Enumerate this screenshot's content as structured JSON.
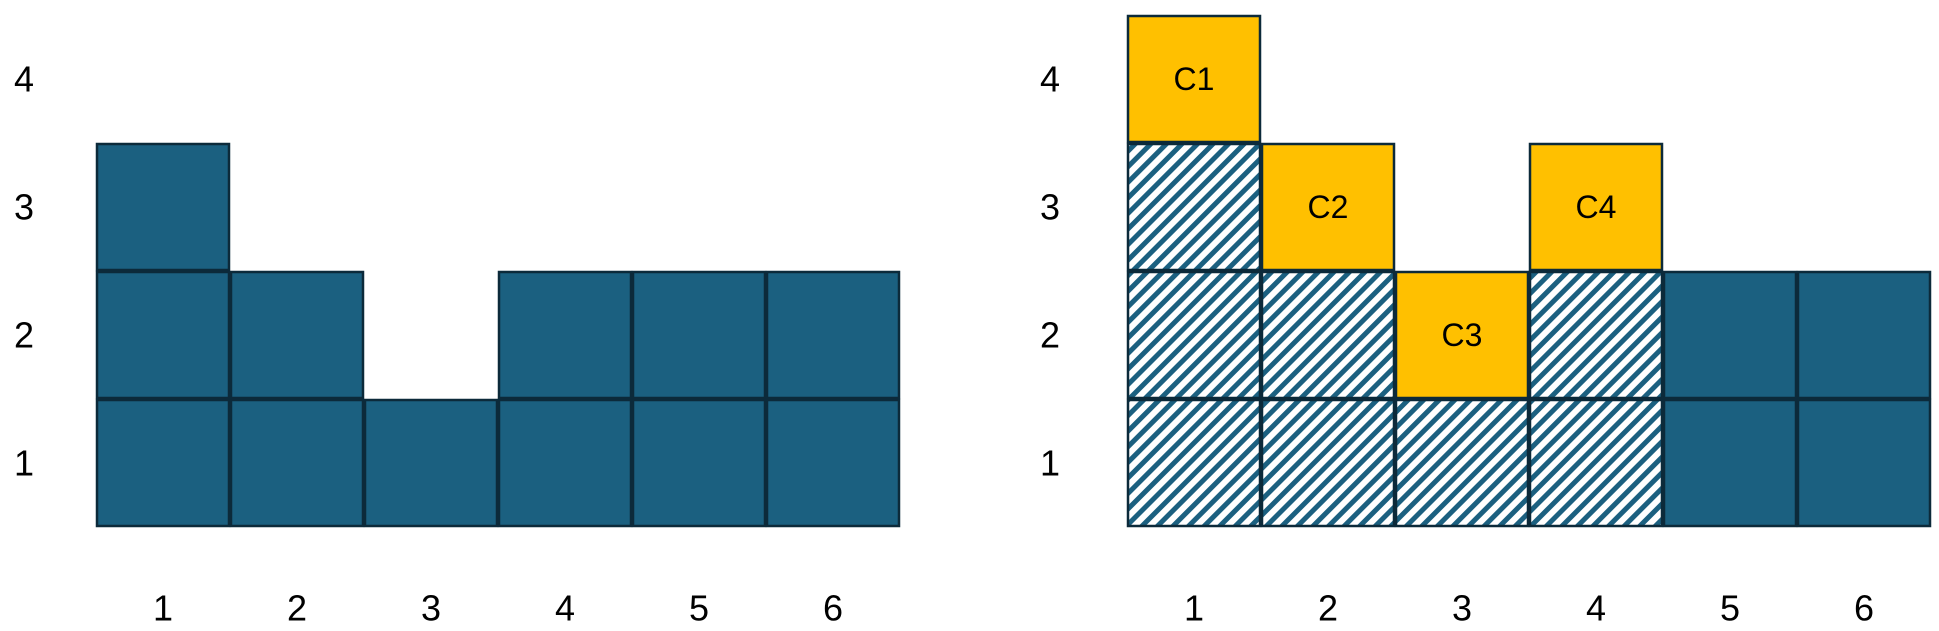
{
  "colors": {
    "solid": "#1b6080",
    "hatch": "#1b6080",
    "highlight": "#ffc000",
    "border": "#0c2a3a"
  },
  "left": {
    "y_ticks": [
      "1",
      "2",
      "3",
      "4"
    ],
    "x_ticks": [
      "1",
      "2",
      "3",
      "4",
      "5",
      "6"
    ],
    "columns": [
      {
        "col": 1,
        "cells": [
          {
            "row": 1,
            "fill": "solid"
          },
          {
            "row": 2,
            "fill": "solid"
          },
          {
            "row": 3,
            "fill": "solid"
          }
        ]
      },
      {
        "col": 2,
        "cells": [
          {
            "row": 1,
            "fill": "solid"
          },
          {
            "row": 2,
            "fill": "solid"
          }
        ]
      },
      {
        "col": 3,
        "cells": [
          {
            "row": 1,
            "fill": "solid"
          }
        ]
      },
      {
        "col": 4,
        "cells": [
          {
            "row": 1,
            "fill": "solid"
          },
          {
            "row": 2,
            "fill": "solid"
          }
        ]
      },
      {
        "col": 5,
        "cells": [
          {
            "row": 1,
            "fill": "solid"
          },
          {
            "row": 2,
            "fill": "solid"
          }
        ]
      },
      {
        "col": 6,
        "cells": [
          {
            "row": 1,
            "fill": "solid"
          },
          {
            "row": 2,
            "fill": "solid"
          }
        ]
      }
    ]
  },
  "right": {
    "y_ticks": [
      "1",
      "2",
      "3",
      "4"
    ],
    "x_ticks": [
      "1",
      "2",
      "3",
      "4",
      "5",
      "6"
    ],
    "columns": [
      {
        "col": 1,
        "cells": [
          {
            "row": 1,
            "fill": "hatch"
          },
          {
            "row": 2,
            "fill": "hatch"
          },
          {
            "row": 3,
            "fill": "hatch"
          },
          {
            "row": 4,
            "fill": "highlight",
            "label": "C1"
          }
        ]
      },
      {
        "col": 2,
        "cells": [
          {
            "row": 1,
            "fill": "hatch"
          },
          {
            "row": 2,
            "fill": "hatch"
          },
          {
            "row": 3,
            "fill": "highlight",
            "label": "C2"
          }
        ]
      },
      {
        "col": 3,
        "cells": [
          {
            "row": 1,
            "fill": "hatch"
          },
          {
            "row": 2,
            "fill": "highlight",
            "label": "C3"
          }
        ]
      },
      {
        "col": 4,
        "cells": [
          {
            "row": 1,
            "fill": "hatch"
          },
          {
            "row": 2,
            "fill": "hatch"
          },
          {
            "row": 3,
            "fill": "highlight",
            "label": "C4"
          }
        ]
      },
      {
        "col": 5,
        "cells": [
          {
            "row": 1,
            "fill": "solid"
          },
          {
            "row": 2,
            "fill": "solid"
          }
        ]
      },
      {
        "col": 6,
        "cells": [
          {
            "row": 1,
            "fill": "solid"
          },
          {
            "row": 2,
            "fill": "solid"
          }
        ]
      }
    ]
  }
}
